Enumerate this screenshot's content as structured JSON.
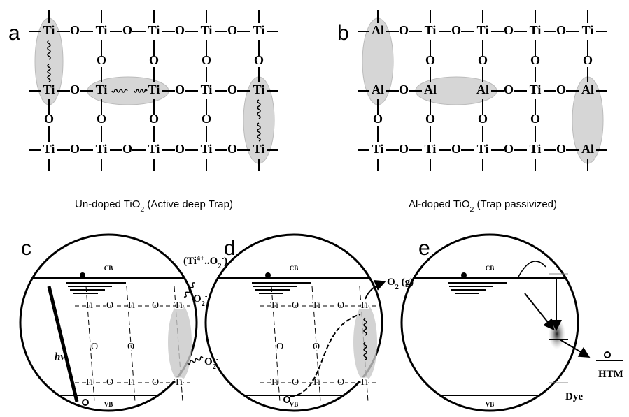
{
  "panels": [
    {
      "label": "a",
      "lattice": [
        [
          "Ti",
          "O",
          "Ti",
          "O",
          "Ti",
          "O",
          "Ti",
          "O",
          "Ti"
        ],
        [
          "O",
          "O",
          "O",
          "O"
        ],
        [
          "Ti",
          "O",
          "Ti",
          "Ti",
          "O",
          "Ti",
          "O",
          "Ti"
        ],
        [
          "O",
          "O",
          "O",
          "O"
        ],
        [
          "Ti",
          "O",
          "Ti",
          "O",
          "Ti",
          "O",
          "Ti",
          "O",
          "Ti"
        ]
      ],
      "caption": [
        "Un-doped TiO",
        "2",
        " (Active deep Trap)"
      ]
    },
    {
      "label": "b",
      "lattice": [
        [
          "Al",
          "O",
          "Ti",
          "O",
          "Ti",
          "O",
          "Ti",
          "O",
          "Ti"
        ],
        [
          "O",
          "O",
          "O",
          "O"
        ],
        [
          "Al",
          "O",
          "Al",
          "Al",
          "O",
          "Ti",
          "O",
          "Al"
        ],
        [
          "O",
          "O",
          "O",
          "O"
        ],
        [
          "Ti",
          "O",
          "Ti",
          "O",
          "Ti",
          "O",
          "Ti",
          "O",
          "Al"
        ]
      ],
      "caption": [
        "Al-doped TiO",
        "2",
        " (Trap passivized)"
      ]
    },
    {
      "label": "c",
      "band_labels": [
        "CB",
        "VB"
      ],
      "lattice": [
        [
          "Ti",
          "O",
          "Ti",
          "O",
          "Ti"
        ],
        [
          "O",
          "O"
        ],
        [
          "Ti",
          "O",
          "Ti",
          "O",
          "Ti"
        ]
      ],
      "annotation": [
        "(Ti",
        "4+",
        "..O",
        "2",
        "-",
        ")"
      ],
      "species": [
        [
          "O",
          "2",
          "-"
        ],
        [
          "O",
          "2",
          "-"
        ]
      ],
      "light": "hv"
    },
    {
      "label": "d",
      "band_labels": [
        "CB",
        "VB"
      ],
      "lattice": [
        [
          "Ti",
          "O",
          "Ti",
          "O",
          "Ti"
        ],
        [
          "O",
          "O"
        ],
        [
          "Ti",
          "O",
          "Ti",
          "O",
          "Ti"
        ]
      ],
      "product": [
        "O",
        "2",
        " (g)"
      ]
    },
    {
      "label": "e",
      "band_labels": [
        "CB",
        "VB"
      ],
      "acceptor": "HTM",
      "dye": "Dye"
    }
  ]
}
